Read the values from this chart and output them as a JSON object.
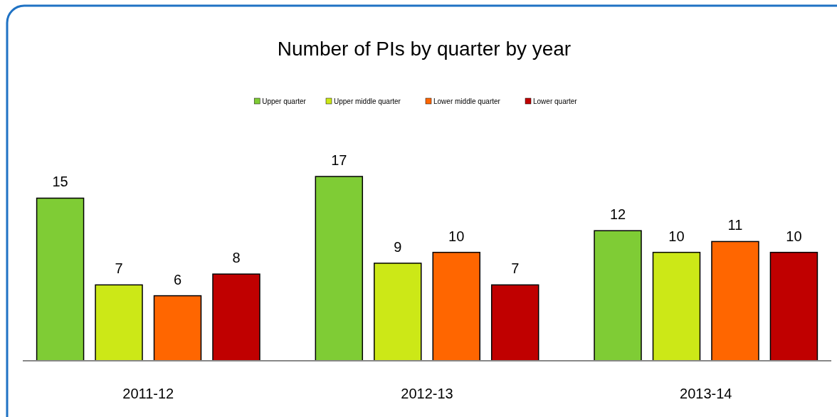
{
  "chart_data": {
    "type": "bar",
    "title": "Number of PIs by quarter by year",
    "categories": [
      "2011-12",
      "2012-13",
      "2013-14"
    ],
    "series": [
      {
        "name": "Upper quarter",
        "color": "#7fcc35",
        "values": [
          15,
          17,
          12
        ]
      },
      {
        "name": "Upper middle quarter",
        "color": "#cce817",
        "values": [
          7,
          9,
          10
        ]
      },
      {
        "name": "Lower middle quarter",
        "color": "#ff6600",
        "values": [
          6,
          10,
          11
        ]
      },
      {
        "name": "Lower quarter",
        "color": "#c00000",
        "values": [
          8,
          7,
          10
        ]
      }
    ],
    "data_labels": true,
    "legend": "top"
  }
}
